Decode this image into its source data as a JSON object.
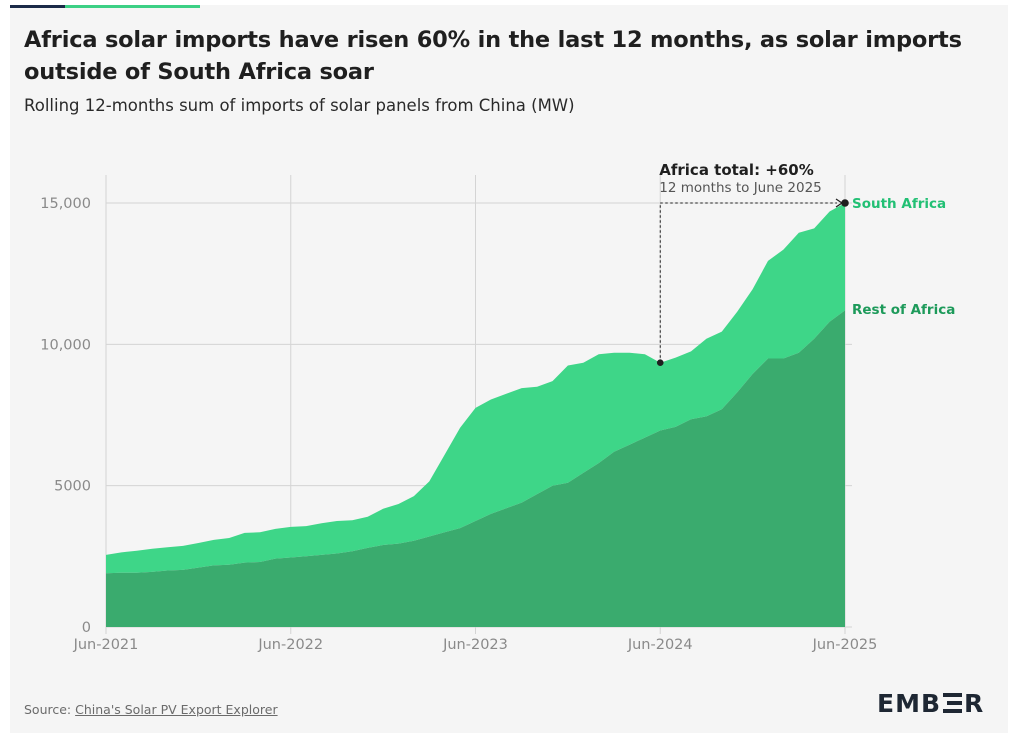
{
  "header": {
    "title": "Africa solar imports have risen 60% in the last 12 months, as solar imports outside of South Africa soar",
    "subtitle": "Rolling 12-months sum of imports of solar panels from China (MW)"
  },
  "footer": {
    "source_prefix": "Source: ",
    "source_link": "China's Solar PV Export Explorer",
    "logo_left": "EMB",
    "logo_right": "R"
  },
  "colors": {
    "south_africa": "#3ed688",
    "rest_of_africa": "#3aab6e",
    "grid": "#d4d4d4",
    "annotation": "#1f1f1f",
    "series_label": "#22c074",
    "rest_label": "#1d9a5a"
  },
  "chart_data": {
    "type": "area",
    "stacked": true,
    "x": [
      "2021-06",
      "2021-07",
      "2021-08",
      "2021-09",
      "2021-10",
      "2021-11",
      "2021-12",
      "2022-01",
      "2022-02",
      "2022-03",
      "2022-04",
      "2022-05",
      "2022-06",
      "2022-07",
      "2022-08",
      "2022-09",
      "2022-10",
      "2022-11",
      "2022-12",
      "2023-01",
      "2023-02",
      "2023-03",
      "2023-04",
      "2023-05",
      "2023-06",
      "2023-07",
      "2023-08",
      "2023-09",
      "2023-10",
      "2023-11",
      "2023-12",
      "2024-01",
      "2024-02",
      "2024-03",
      "2024-04",
      "2024-05",
      "2024-06",
      "2024-07",
      "2024-08",
      "2024-09",
      "2024-10",
      "2024-11",
      "2024-12",
      "2025-01",
      "2025-02",
      "2025-03",
      "2025-04",
      "2025-05",
      "2025-06"
    ],
    "series": [
      {
        "name": "Rest of Africa",
        "values": [
          1900,
          1920,
          1920,
          1950,
          2000,
          2020,
          2100,
          2180,
          2200,
          2280,
          2300,
          2420,
          2460,
          2500,
          2550,
          2600,
          2680,
          2800,
          2900,
          2950,
          3050,
          3200,
          3350,
          3500,
          3750,
          4000,
          4200,
          4400,
          4700,
          5000,
          5100,
          5450,
          5800,
          6200,
          6450,
          6700,
          6950,
          7080,
          7350,
          7450,
          7700,
          8300,
          8950,
          9500,
          9500,
          9700,
          10200,
          10800,
          11200
        ]
      },
      {
        "name": "South Africa",
        "values": [
          650,
          720,
          780,
          820,
          820,
          850,
          870,
          900,
          950,
          1050,
          1050,
          1050,
          1080,
          1070,
          1120,
          1150,
          1100,
          1100,
          1280,
          1400,
          1580,
          1950,
          2750,
          3550,
          4000,
          4050,
          4050,
          4050,
          3800,
          3700,
          4150,
          3900,
          3850,
          3500,
          3250,
          2950,
          2400,
          2450,
          2400,
          2750,
          2750,
          2850,
          3000,
          3450,
          3850,
          4250,
          3900,
          3900,
          3800
        ]
      }
    ],
    "xticks": [
      "Jun-2021",
      "Jun-2022",
      "Jun-2023",
      "Jun-2024",
      "Jun-2025"
    ],
    "yticks": [
      "0",
      "5000",
      "10,000",
      "15,000"
    ],
    "ylim": [
      0,
      15000
    ],
    "series_labels": {
      "south_africa": "South Africa",
      "rest_of_africa": "Rest of Africa"
    },
    "annotation": {
      "title": "Africa total: +60%",
      "detail": "12 months to June 2025",
      "from_x": "2024-06",
      "from_y": 9350,
      "to_x": "2025-06",
      "to_y": 15000
    }
  }
}
